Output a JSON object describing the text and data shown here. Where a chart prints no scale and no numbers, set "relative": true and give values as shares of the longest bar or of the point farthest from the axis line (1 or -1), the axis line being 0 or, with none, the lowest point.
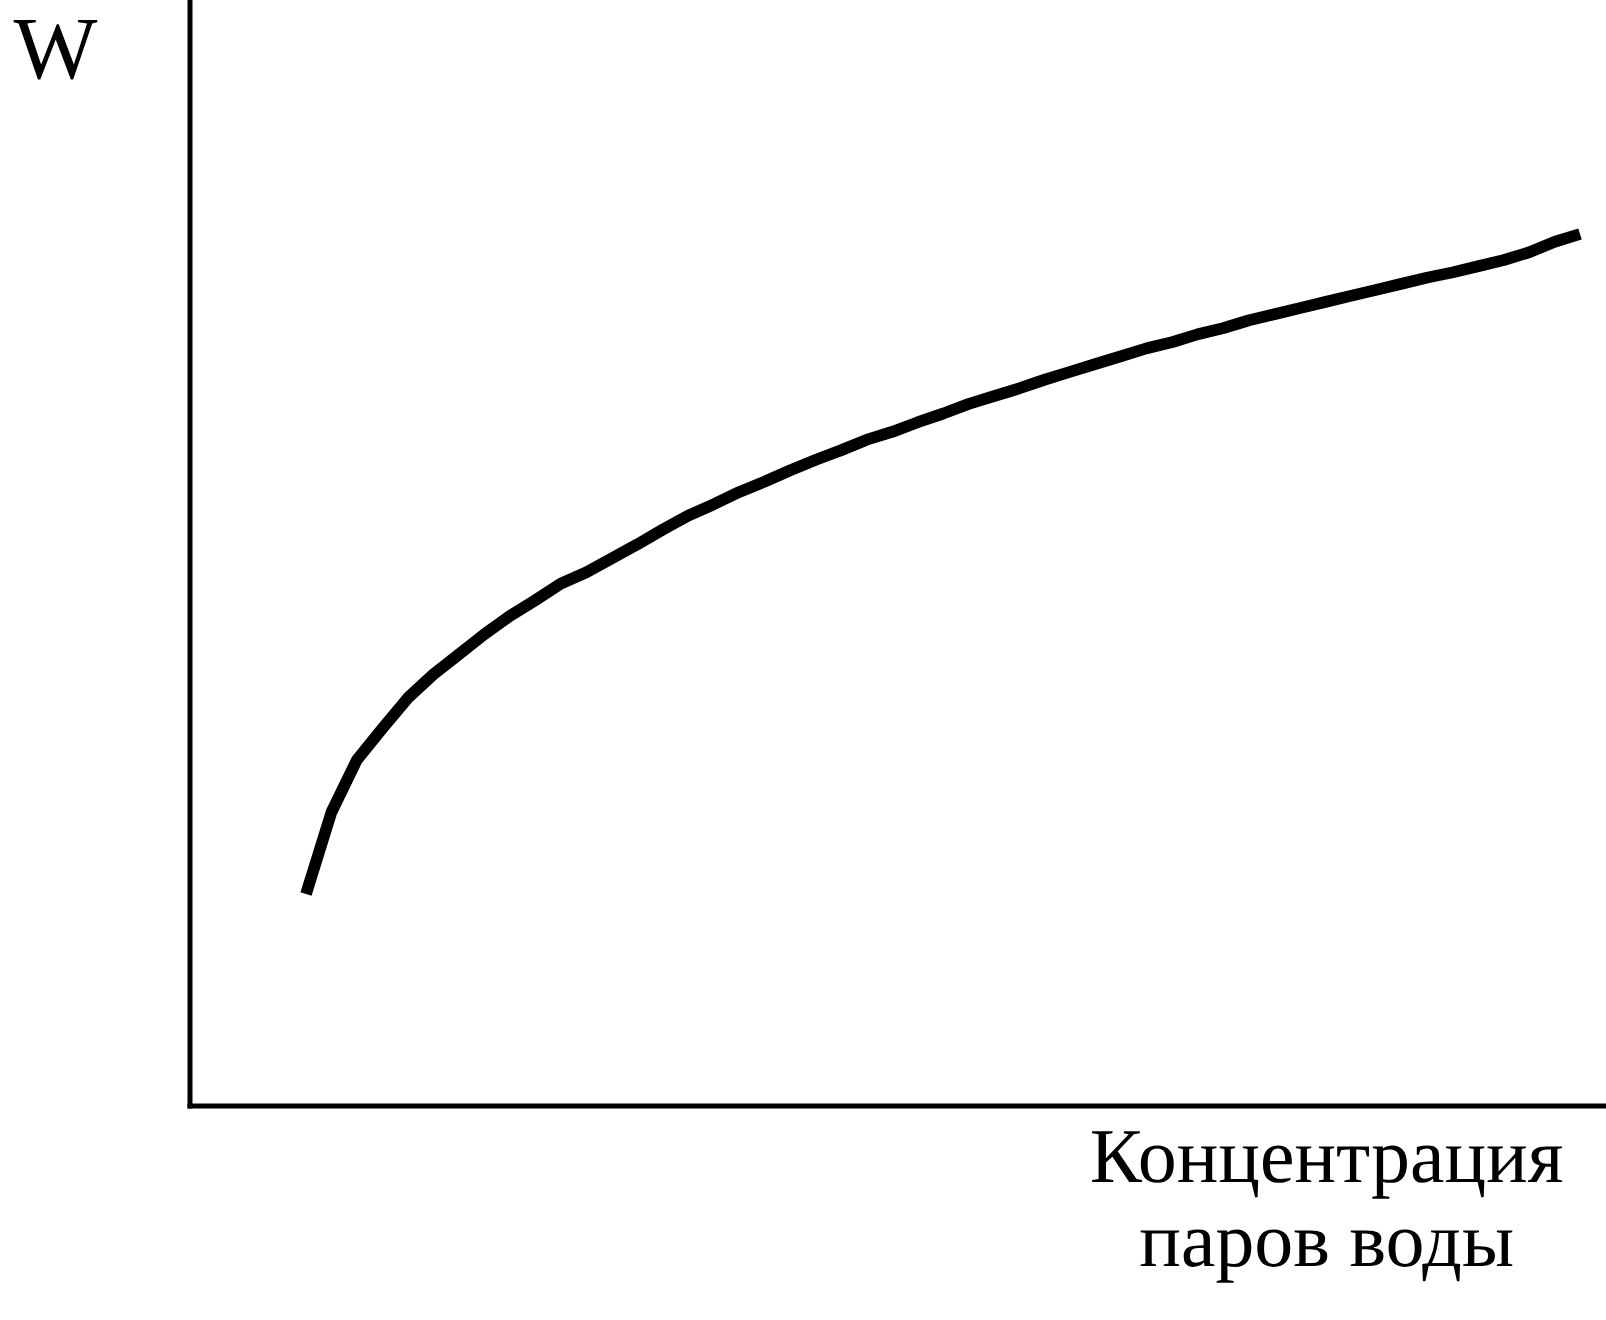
{
  "chart_data": {
    "type": "line",
    "relative": true,
    "xlabel": "Концентрация\nпаров воды",
    "ylabel": "W",
    "marker": "none",
    "line_style": "solid",
    "categories": [
      null,
      null,
      null,
      null,
      null,
      null,
      null,
      null,
      null,
      null,
      null,
      null,
      null,
      null,
      null,
      null,
      null,
      null,
      null,
      null,
      null,
      null,
      null,
      null,
      null,
      null,
      null,
      null,
      null,
      null,
      null,
      null,
      null,
      null,
      null,
      null,
      null,
      null,
      null,
      null,
      null,
      null,
      null,
      null,
      null,
      null,
      null,
      null,
      null,
      null,
      null
    ],
    "series": [
      {
        "color": "#000000",
        "values": [
          0.243,
          0.337,
          0.397,
          0.433,
          0.468,
          0.495,
          0.518,
          0.541,
          0.562,
          0.58,
          0.599,
          0.612,
          0.628,
          0.644,
          0.661,
          0.677,
          0.69,
          0.704,
          0.716,
          0.729,
          0.741,
          0.752,
          0.764,
          0.773,
          0.784,
          0.794,
          0.805,
          0.814,
          0.823,
          0.833,
          0.842,
          0.851,
          0.86,
          0.869,
          0.876,
          0.885,
          0.892,
          0.901,
          0.908,
          0.915,
          0.922,
          0.929,
          0.936,
          0.943,
          0.95,
          0.956,
          0.963,
          0.97,
          0.979,
          0.991,
          1.0
        ]
      }
    ]
  }
}
